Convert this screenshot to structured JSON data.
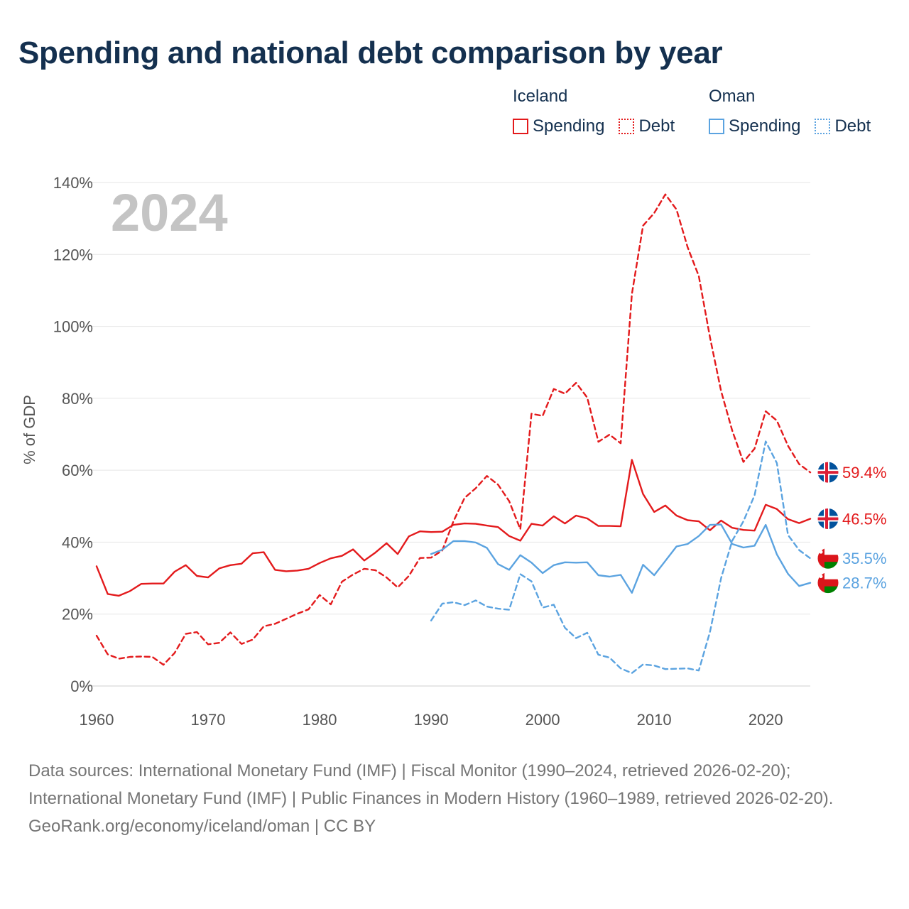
{
  "title": "Spending and national debt comparison by year",
  "legend": [
    {
      "country": "Iceland",
      "color": "#e31a1c",
      "items": [
        {
          "label": "Spending",
          "style": "solid"
        },
        {
          "label": "Debt",
          "style": "dotted"
        }
      ]
    },
    {
      "country": "Oman",
      "color": "#5ba3e0",
      "items": [
        {
          "label": "Spending",
          "style": "solid"
        },
        {
          "label": "Debt",
          "style": "dotted"
        }
      ]
    }
  ],
  "chart_data": {
    "type": "line",
    "year_label": "2024",
    "ylabel": "% of GDP",
    "xlabel": "",
    "xlim": [
      1960,
      2024
    ],
    "ylim": [
      0,
      140
    ],
    "x_ticks": [
      1960,
      1970,
      1980,
      1990,
      2000,
      2010,
      2020
    ],
    "x_tick_labels": [
      "1960",
      "1970",
      "1980",
      "1990",
      "2000",
      "2010",
      "2020"
    ],
    "y_ticks": [
      0,
      20,
      40,
      60,
      80,
      100,
      120,
      140
    ],
    "y_tick_labels": [
      "0%",
      "20%",
      "40%",
      "60%",
      "80%",
      "100%",
      "120%",
      "140%"
    ],
    "grid": true,
    "series": [
      {
        "name": "Iceland Debt",
        "country": "Iceland",
        "measure": "Debt",
        "color": "#e31a1c",
        "dashed": true,
        "end_label": "59.4%",
        "x": [
          1960,
          1961,
          1962,
          1963,
          1964,
          1965,
          1966,
          1967,
          1968,
          1969,
          1970,
          1971,
          1972,
          1973,
          1974,
          1975,
          1976,
          1977,
          1978,
          1979,
          1980,
          1981,
          1982,
          1983,
          1984,
          1985,
          1986,
          1987,
          1988,
          1989,
          1990,
          1991,
          1992,
          1993,
          1994,
          1995,
          1996,
          1997,
          1998,
          1999,
          2000,
          2001,
          2002,
          2003,
          2004,
          2005,
          2006,
          2007,
          2008,
          2009,
          2010,
          2011,
          2012,
          2013,
          2014,
          2015,
          2016,
          2017,
          2018,
          2019,
          2020,
          2021,
          2022,
          2023,
          2024
        ],
        "values": [
          14,
          8.8,
          7.6,
          8.1,
          8.2,
          8.1,
          5.9,
          9.2,
          14.5,
          15,
          11.6,
          12,
          14.9,
          11.7,
          12.9,
          16.6,
          17.3,
          18.7,
          20.1,
          21.3,
          25.3,
          22.7,
          29,
          31,
          32.6,
          32.2,
          30.2,
          27.4,
          30.6,
          35.6,
          35.7,
          37.7,
          45.8,
          52.3,
          55,
          58.4,
          56,
          51.4,
          43.6,
          75.7,
          75.1,
          82.6,
          81.3,
          84.3,
          80.2,
          67.9,
          69.9,
          67.5,
          109,
          128,
          131.5,
          136.7,
          132.5,
          122,
          114,
          97,
          82,
          71,
          62.3,
          66,
          76.4,
          73.8,
          66.8,
          61.7,
          59.4
        ]
      },
      {
        "name": "Iceland Spending",
        "country": "Iceland",
        "measure": "Spending",
        "color": "#e31a1c",
        "dashed": false,
        "end_label": "46.5%",
        "x": [
          1960,
          1961,
          1962,
          1963,
          1964,
          1965,
          1966,
          1967,
          1968,
          1969,
          1970,
          1971,
          1972,
          1973,
          1974,
          1975,
          1976,
          1977,
          1978,
          1979,
          1980,
          1981,
          1982,
          1983,
          1984,
          1985,
          1986,
          1987,
          1988,
          1989,
          1990,
          1991,
          1992,
          1993,
          1994,
          1995,
          1996,
          1997,
          1998,
          1999,
          2000,
          2001,
          2002,
          2003,
          2004,
          2005,
          2006,
          2007,
          2008,
          2009,
          2010,
          2011,
          2012,
          2013,
          2014,
          2015,
          2016,
          2017,
          2018,
          2019,
          2020,
          2021,
          2022,
          2023,
          2024
        ],
        "values": [
          33.3,
          25.6,
          25.1,
          26.4,
          28.4,
          28.5,
          28.5,
          31.8,
          33.6,
          30.6,
          30.2,
          32.7,
          33.6,
          34,
          36.9,
          37.2,
          32.3,
          31.9,
          32.1,
          32.6,
          34.2,
          35.5,
          36.2,
          38,
          34.9,
          37.1,
          39.7,
          36.7,
          41.6,
          43,
          42.8,
          42.9,
          44.8,
          45.2,
          45.1,
          44.6,
          44.2,
          41.7,
          40.4,
          45.1,
          44.6,
          47.2,
          45.2,
          47.4,
          46.6,
          44.5,
          44.5,
          44.4,
          62.9,
          53.4,
          48.4,
          50.2,
          47.4,
          46.1,
          45.8,
          43.3,
          46,
          44,
          43.4,
          43.2,
          50.4,
          49.2,
          46.4,
          45.3,
          46.5
        ]
      },
      {
        "name": "Oman Debt",
        "country": "Oman",
        "measure": "Debt",
        "color": "#5ba3e0",
        "dashed": true,
        "end_label": "35.5%",
        "x": [
          1990,
          1991,
          1992,
          1993,
          1994,
          1995,
          1996,
          1997,
          1998,
          1999,
          2000,
          2001,
          2002,
          2003,
          2004,
          2005,
          2006,
          2007,
          2008,
          2009,
          2010,
          2011,
          2012,
          2013,
          2014,
          2015,
          2016,
          2017,
          2018,
          2019,
          2020,
          2021,
          2022,
          2023,
          2024
        ],
        "values": [
          18.2,
          22.9,
          23.3,
          22.5,
          23.8,
          22.1,
          21.5,
          21.2,
          31.1,
          29.1,
          21.8,
          22.6,
          16.2,
          13.3,
          14.8,
          8.7,
          7.9,
          4.9,
          3.6,
          6,
          5.7,
          4.7,
          4.8,
          4.9,
          4.3,
          15,
          30,
          40.4,
          45.8,
          53,
          68,
          62,
          42,
          37.8,
          35.5
        ]
      },
      {
        "name": "Oman Spending",
        "country": "Oman",
        "measure": "Spending",
        "color": "#5ba3e0",
        "dashed": false,
        "end_label": "28.7%",
        "x": [
          1990,
          1991,
          1992,
          1993,
          1994,
          1995,
          1996,
          1997,
          1998,
          1999,
          2000,
          2001,
          2002,
          2003,
          2004,
          2005,
          2006,
          2007,
          2008,
          2009,
          2010,
          2011,
          2012,
          2013,
          2014,
          2015,
          2016,
          2017,
          2018,
          2019,
          2020,
          2021,
          2022,
          2023,
          2024
        ],
        "values": [
          36.7,
          37.9,
          40.3,
          40.3,
          39.9,
          38.4,
          33.9,
          32.3,
          36.4,
          34.3,
          31.4,
          33.6,
          34.4,
          34.3,
          34.4,
          30.8,
          30.4,
          30.9,
          25.9,
          33.7,
          30.8,
          34.8,
          38.8,
          39.5,
          41.7,
          44.8,
          44.9,
          39.5,
          38.5,
          39,
          44.8,
          36.6,
          31.2,
          27.8,
          28.7
        ]
      }
    ]
  },
  "footer": {
    "sources": "Data sources: International Monetary Fund (IMF) | Fiscal Monitor (1990–2024, retrieved 2026-02-20); International Monetary Fund (IMF) | Public Finances in Modern History (1960–1989, retrieved 2026-02-20).",
    "credit": "GeoRank.org/economy/iceland/oman | CC BY"
  }
}
